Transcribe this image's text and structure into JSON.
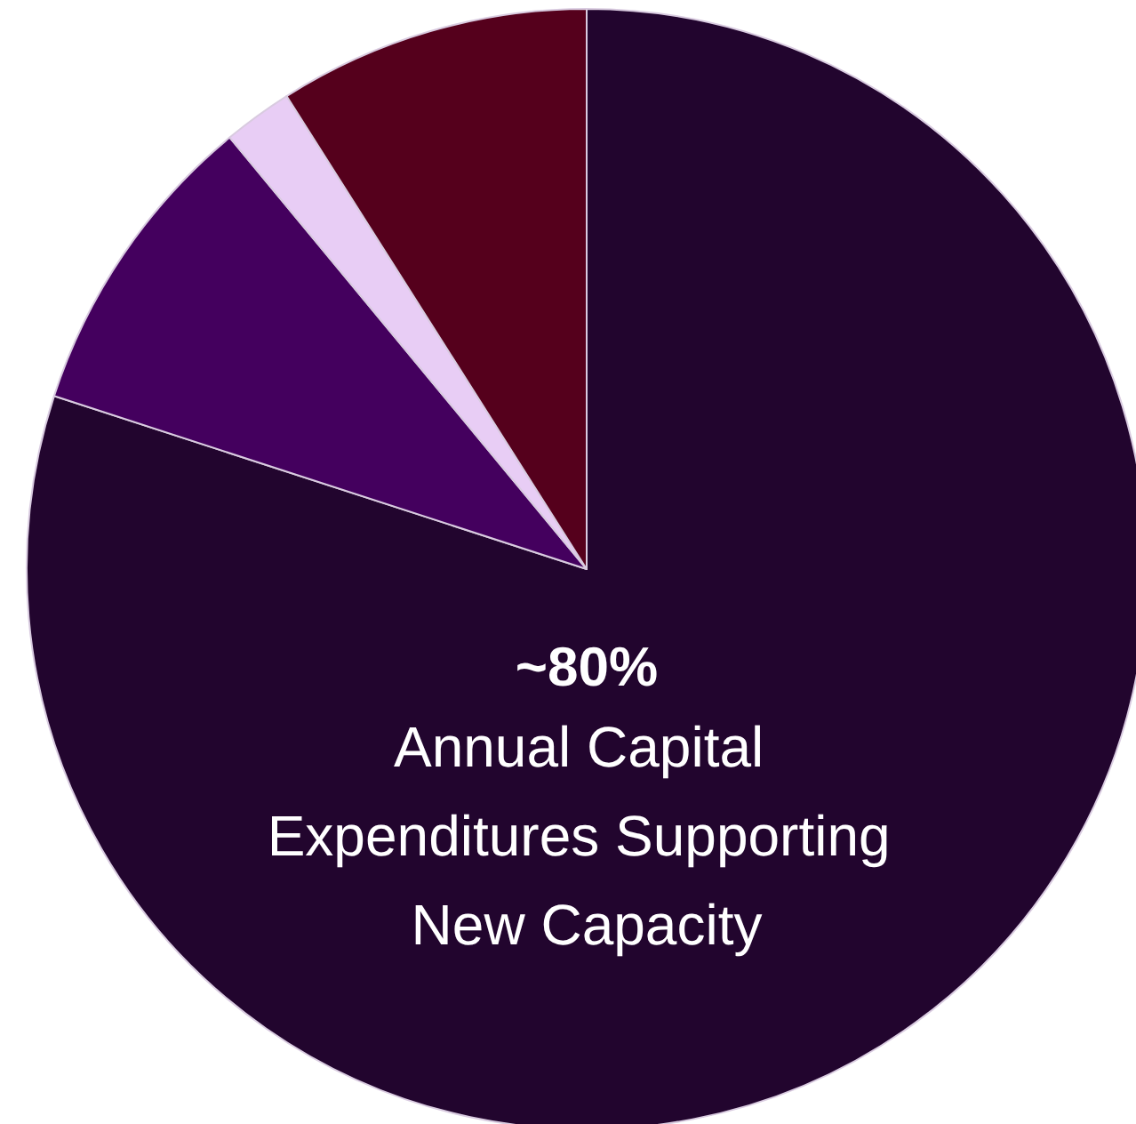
{
  "chart_data": {
    "type": "pie",
    "categories": [
      null,
      null,
      null,
      null
    ],
    "values": [
      80,
      9,
      2,
      9
    ],
    "colors": [
      "#22052e",
      "#44005e",
      "#e8cdf5",
      "#55001c"
    ],
    "annotations": [
      "~80%",
      "Annual Capital Expenditures Supporting New Capacity"
    ]
  }
}
